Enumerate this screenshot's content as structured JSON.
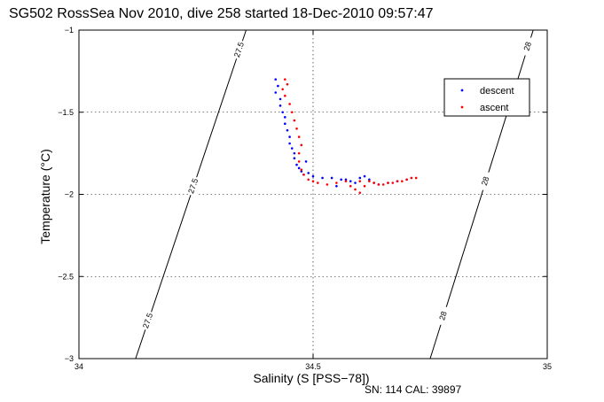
{
  "chart_data": {
    "type": "scatter",
    "title": "SG502 RossSea Nov 2010, dive 258 started 18-Dec-2010 09:57:47",
    "xlabel": "Salinity (S [PSS−78])",
    "ylabel": "Temperature (°C)",
    "xlim": [
      34,
      35
    ],
    "ylim": [
      -3,
      -1
    ],
    "x_ticks": [
      "34",
      "34.5",
      "35"
    ],
    "y_ticks": [
      "−3",
      "−2.5",
      "−2",
      "−1.5",
      "−1"
    ],
    "grid": true,
    "legend_position": "top-right",
    "footer": "SN: 114  CAL: 39897",
    "isopycnals": [
      {
        "label": "27.5",
        "points": [
          [
            34.357,
            -1.0
          ],
          [
            34.121,
            -3.0
          ]
        ],
        "label_y": [
          -1.12,
          -1.95,
          -2.77
        ]
      },
      {
        "label": "28",
        "points": [
          [
            34.97,
            -1.0
          ],
          [
            34.75,
            -3.0
          ]
        ],
        "label_y": [
          -1.1,
          -1.92,
          -2.74
        ]
      }
    ],
    "series": [
      {
        "name": "descent",
        "color": "#0000ff",
        "points": [
          [
            34.42,
            -1.3
          ],
          [
            34.425,
            -1.34
          ],
          [
            34.42,
            -1.38
          ],
          [
            34.43,
            -1.42
          ],
          [
            34.43,
            -1.46
          ],
          [
            34.435,
            -1.5
          ],
          [
            34.44,
            -1.53
          ],
          [
            34.44,
            -1.57
          ],
          [
            34.445,
            -1.61
          ],
          [
            34.45,
            -1.65
          ],
          [
            34.45,
            -1.69
          ],
          [
            34.455,
            -1.72
          ],
          [
            34.46,
            -1.75
          ],
          [
            34.46,
            -1.78
          ],
          [
            34.465,
            -1.82
          ],
          [
            34.47,
            -1.84
          ],
          [
            34.475,
            -1.86
          ],
          [
            34.48,
            -1.88
          ],
          [
            34.485,
            -1.8
          ],
          [
            34.49,
            -1.87
          ],
          [
            34.5,
            -1.89
          ],
          [
            34.52,
            -1.9
          ],
          [
            34.54,
            -1.9
          ],
          [
            34.56,
            -1.91
          ],
          [
            34.57,
            -1.91
          ],
          [
            34.58,
            -1.92
          ],
          [
            34.59,
            -1.93
          ],
          [
            34.6,
            -1.9
          ],
          [
            34.61,
            -1.89
          ],
          [
            34.62,
            -1.91
          ],
          [
            34.63,
            -1.93
          ],
          [
            34.64,
            -1.94
          ],
          [
            34.66,
            -1.93
          ],
          [
            34.68,
            -1.92
          ],
          [
            34.7,
            -1.91
          ],
          [
            34.55,
            -1.95
          ]
        ]
      },
      {
        "name": "ascent",
        "color": "#ff0000",
        "points": [
          [
            34.44,
            -1.3
          ],
          [
            34.445,
            -1.33
          ],
          [
            34.435,
            -1.36
          ],
          [
            34.44,
            -1.4
          ],
          [
            34.45,
            -1.45
          ],
          [
            34.455,
            -1.5
          ],
          [
            34.46,
            -1.55
          ],
          [
            34.465,
            -1.6
          ],
          [
            34.47,
            -1.65
          ],
          [
            34.475,
            -1.7
          ],
          [
            34.47,
            -1.75
          ],
          [
            34.47,
            -1.8
          ],
          [
            34.475,
            -1.85
          ],
          [
            34.48,
            -1.88
          ],
          [
            34.49,
            -1.91
          ],
          [
            34.5,
            -1.92
          ],
          [
            34.51,
            -1.93
          ],
          [
            34.53,
            -1.94
          ],
          [
            34.55,
            -1.93
          ],
          [
            34.57,
            -1.92
          ],
          [
            34.58,
            -1.95
          ],
          [
            34.59,
            -1.97
          ],
          [
            34.6,
            -1.99
          ],
          [
            34.61,
            -1.95
          ],
          [
            34.62,
            -1.92
          ],
          [
            34.63,
            -1.93
          ],
          [
            34.64,
            -1.94
          ],
          [
            34.65,
            -1.94
          ],
          [
            34.66,
            -1.93
          ],
          [
            34.67,
            -1.93
          ],
          [
            34.68,
            -1.92
          ],
          [
            34.69,
            -1.92
          ],
          [
            34.7,
            -1.91
          ],
          [
            34.71,
            -1.9
          ],
          [
            34.72,
            -1.9
          ],
          [
            34.6,
            -1.92
          ]
        ]
      }
    ]
  }
}
